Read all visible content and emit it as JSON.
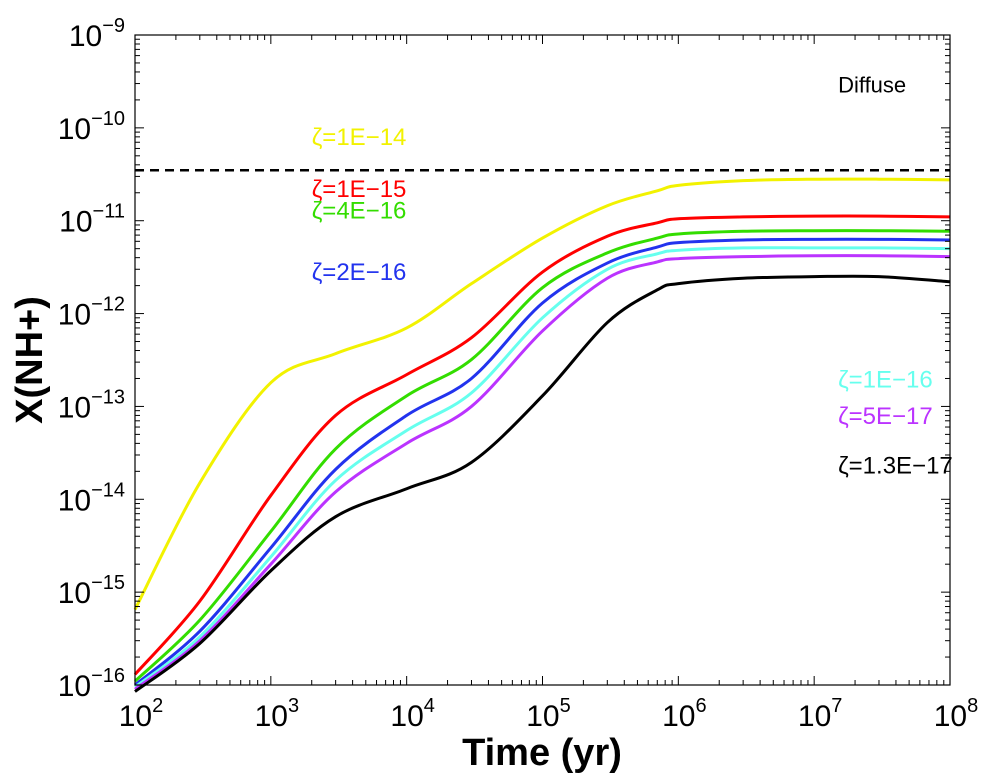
{
  "chart_data": {
    "type": "line",
    "xlabel": "Time (yr)",
    "ylabel": "X(NH+)",
    "xscale": "log",
    "yscale": "log",
    "xlim": [
      100,
      100000000
    ],
    "ylim": [
      1e-16,
      1e-09
    ],
    "x_tick_labels": [
      {
        "base": "10",
        "exp": "2"
      },
      {
        "base": "10",
        "exp": "3"
      },
      {
        "base": "10",
        "exp": "4"
      },
      {
        "base": "10",
        "exp": "5"
      },
      {
        "base": "10",
        "exp": "6"
      },
      {
        "base": "10",
        "exp": "7"
      },
      {
        "base": "10",
        "exp": "8"
      }
    ],
    "y_tick_labels": [
      {
        "base": "10",
        "exp": "−16"
      },
      {
        "base": "10",
        "exp": "−15"
      },
      {
        "base": "10",
        "exp": "−14"
      },
      {
        "base": "10",
        "exp": "−13"
      },
      {
        "base": "10",
        "exp": "−12"
      },
      {
        "base": "10",
        "exp": "−11"
      },
      {
        "base": "10",
        "exp": "−10"
      },
      {
        "base": "10",
        "exp": "−9"
      }
    ],
    "grid": false,
    "annotations": [
      {
        "text": "Diffuse",
        "x": 15000000.0,
        "y": 2.4e-10
      }
    ],
    "reference_line": {
      "y": 3.5e-11,
      "style": "dashed",
      "color": "#000000"
    },
    "x": [
      100,
      300,
      1000,
      3000,
      10000,
      30000,
      100000,
      300000,
      700000,
      1000000,
      3000000,
      10000000,
      30000000,
      100000000
    ],
    "series": [
      {
        "name": "ζ=1E−14",
        "color": "#f2f200",
        "label_x": 2000,
        "label_y": 6.5e-11,
        "values": [
          6.5e-16,
          1.5e-14,
          1.8e-13,
          3.7e-13,
          7e-13,
          2.1e-12,
          6.5e-12,
          1.45e-11,
          2.1e-11,
          2.4e-11,
          2.7e-11,
          2.8e-11,
          2.8e-11,
          2.75e-11
        ]
      },
      {
        "name": "ζ=1E−15",
        "color": "#ff0000",
        "label_x": 2000,
        "label_y": 1.8e-11,
        "values": [
          1.3e-16,
          8e-16,
          1.1e-14,
          8e-14,
          2.2e-13,
          5.5e-13,
          2.8e-12,
          6.8e-12,
          9.5e-12,
          1.05e-11,
          1.1e-11,
          1.12e-11,
          1.12e-11,
          1.1e-11
        ]
      },
      {
        "name": "ζ=4E−16",
        "color": "#33dd00",
        "label_x": 2000,
        "label_y": 1.05e-11,
        "values": [
          1.1e-16,
          5e-16,
          4.5e-15,
          3.5e-14,
          1.3e-13,
          3.2e-13,
          1.9e-12,
          4.5e-12,
          6.5e-12,
          7.2e-12,
          7.7e-12,
          7.8e-12,
          7.8e-12,
          7.7e-12
        ]
      },
      {
        "name": "ζ=2E−16",
        "color": "#2233ee",
        "label_x": 2000,
        "label_y": 2.3e-12,
        "values": [
          1e-16,
          3.8e-16,
          3e-15,
          2.1e-14,
          8e-14,
          2e-13,
          1.3e-12,
          3.5e-12,
          5.2e-12,
          5.8e-12,
          6.2e-12,
          6.3e-12,
          6.3e-12,
          6.2e-12
        ]
      },
      {
        "name": "ζ=1E−16",
        "color": "#66ffee",
        "label_x": 15000000.0,
        "label_y": 1.6e-13,
        "values": [
          9.5e-17,
          3.3e-16,
          2.4e-15,
          1.6e-14,
          5.5e-14,
          1.4e-13,
          9e-13,
          3e-12,
          4.4e-12,
          4.8e-12,
          5.1e-12,
          5.1e-12,
          5.1e-12,
          5e-12
        ]
      },
      {
        "name": "ζ=5E−17",
        "color": "#bb33ff",
        "label_x": 15000000.0,
        "label_y": 6.5e-14,
        "values": [
          9e-17,
          3e-16,
          2e-15,
          1.2e-14,
          4e-14,
          1e-13,
          6.5e-13,
          2.4e-12,
          3.6e-12,
          3.9e-12,
          4.1e-12,
          4.2e-12,
          4.2e-12,
          4.1e-12
        ]
      },
      {
        "name": "ζ=1.3E−17",
        "color": "#000000",
        "label_x": 15000000.0,
        "label_y": 1.9e-14,
        "values": [
          8.5e-17,
          2.8e-16,
          1.7e-15,
          6.5e-15,
          1.3e-14,
          2.5e-14,
          1.3e-13,
          8e-13,
          1.8e-12,
          2.1e-12,
          2.4e-12,
          2.5e-12,
          2.5e-12,
          2.2e-12
        ]
      }
    ]
  }
}
